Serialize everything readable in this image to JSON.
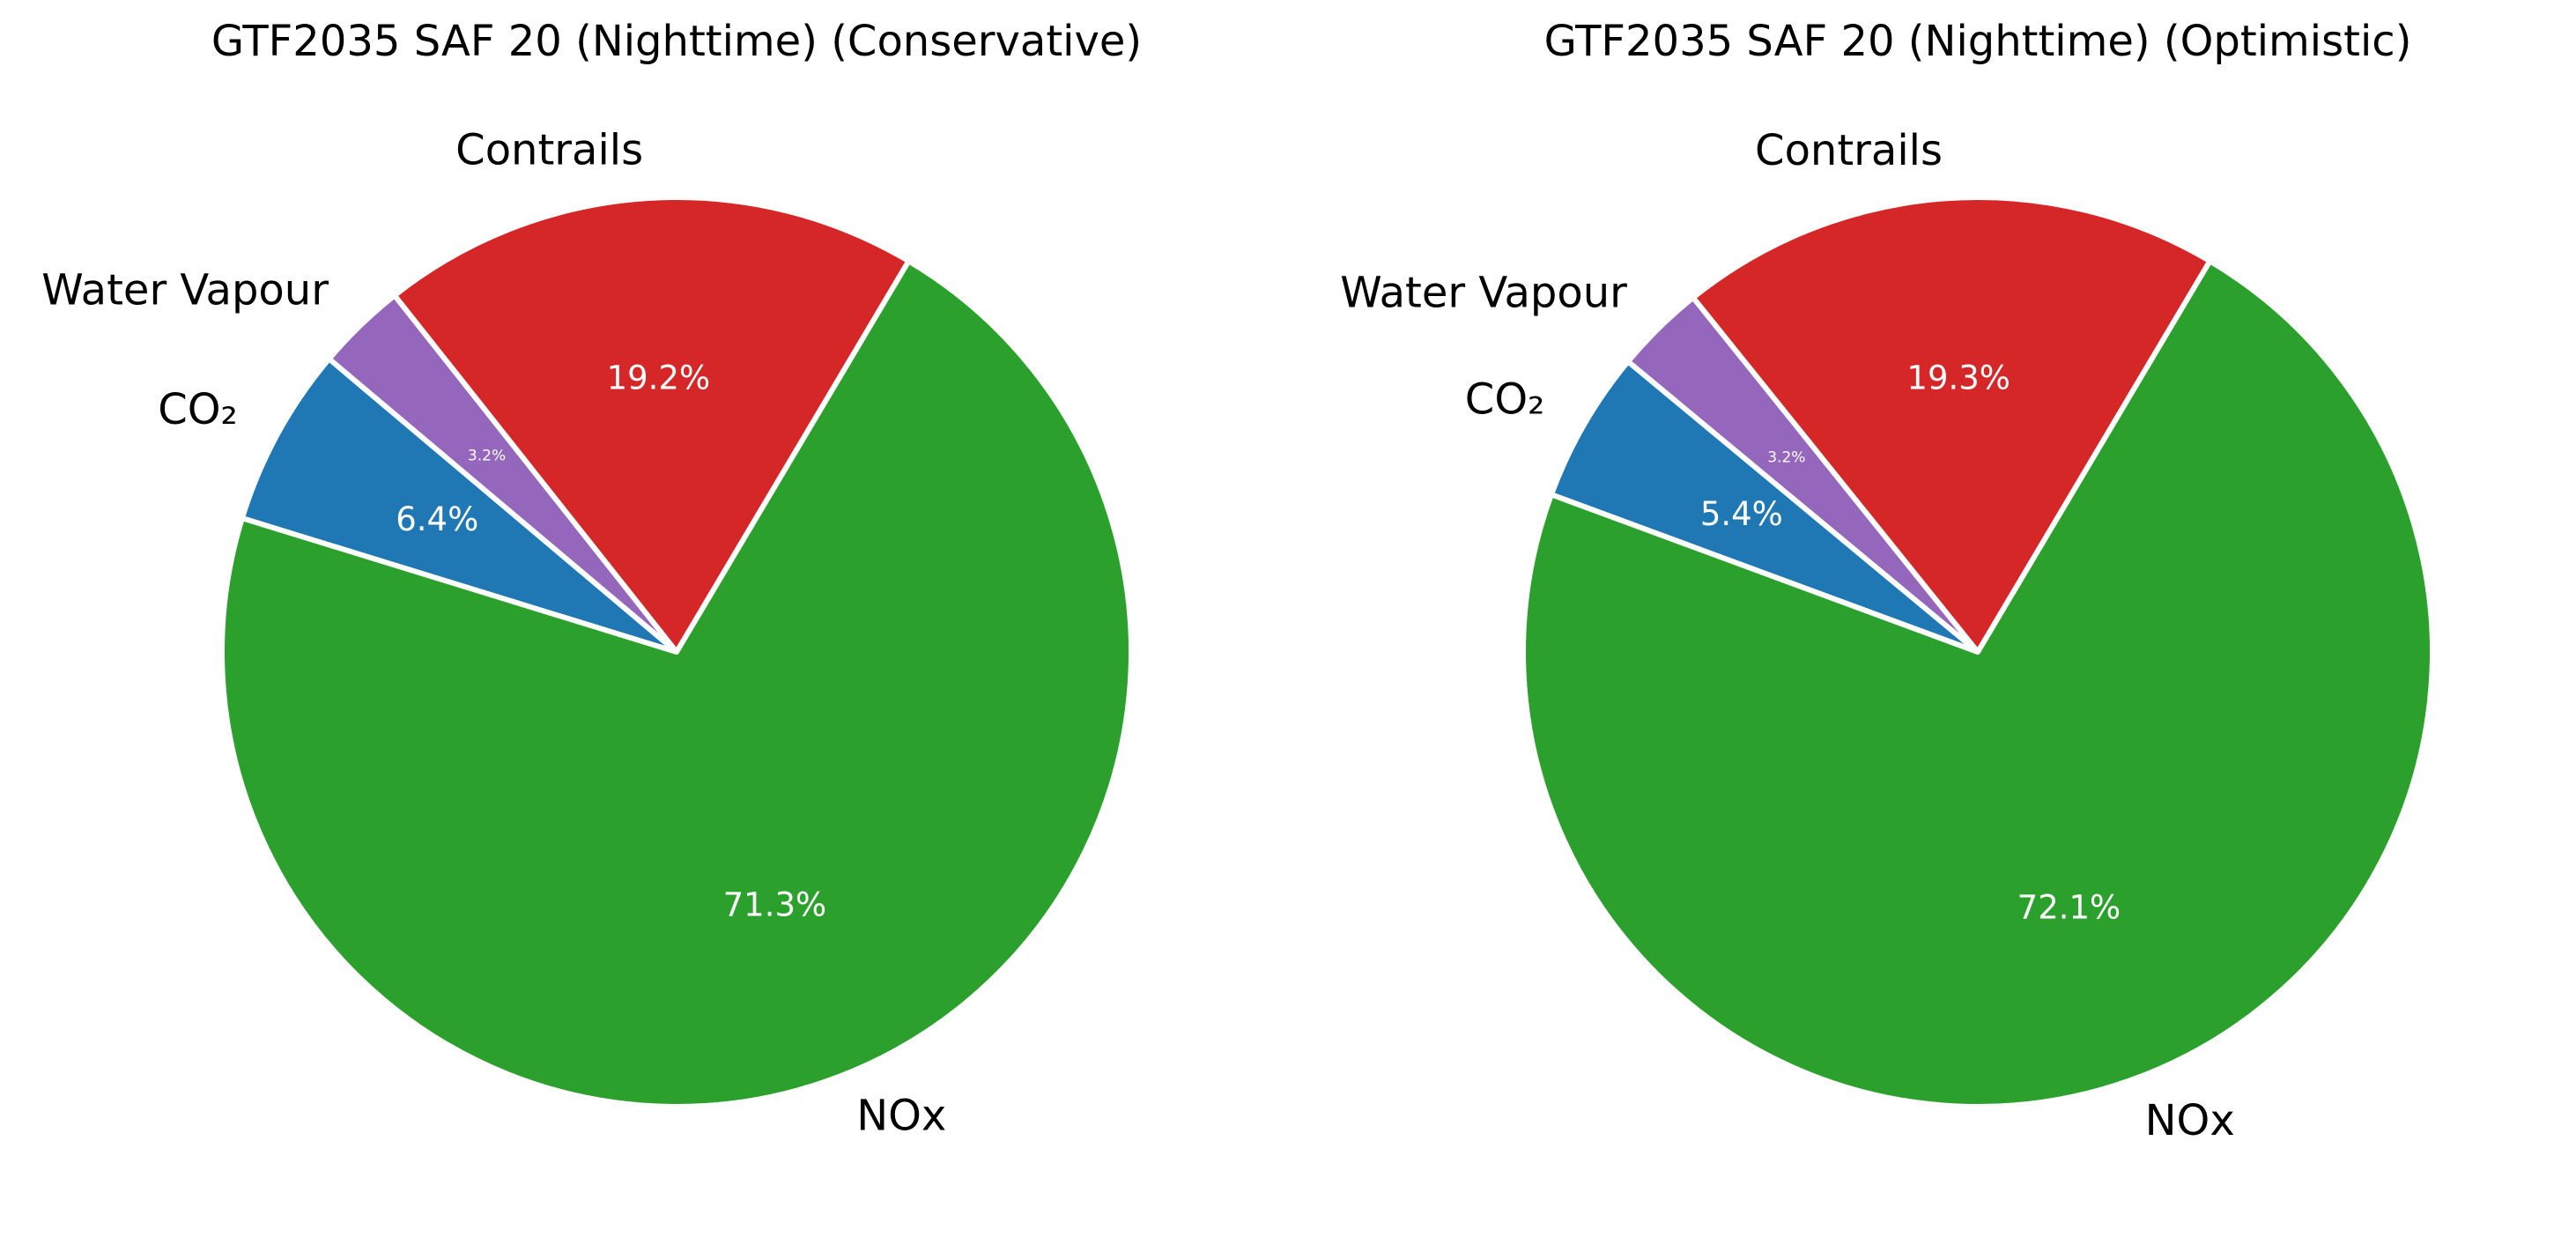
{
  "chart_data": [
    {
      "type": "pie",
      "title": "GTF2035 SAF 20 (Nighttime) (Conservative)",
      "categories": [
        "Contrails",
        "Water Vapour",
        "CO₂",
        "NOx"
      ],
      "values": [
        19.2,
        3.2,
        6.4,
        71.3
      ],
      "value_labels": [
        "19.2%",
        "3.2%",
        "6.4%",
        "71.3%"
      ],
      "colors": [
        "#d62728",
        "#9467bd",
        "#1f77b4",
        "#2ca02c"
      ]
    },
    {
      "type": "pie",
      "title": "GTF2035 SAF 20 (Nighttime) (Optimistic)",
      "categories": [
        "Contrails",
        "Water Vapour",
        "CO₂",
        "NOx"
      ],
      "values": [
        19.3,
        3.2,
        5.4,
        72.1
      ],
      "value_labels": [
        "19.3%",
        "3.2%",
        "5.4%",
        "72.1%"
      ],
      "colors": [
        "#d62728",
        "#9467bd",
        "#1f77b4",
        "#2ca02c"
      ]
    }
  ]
}
